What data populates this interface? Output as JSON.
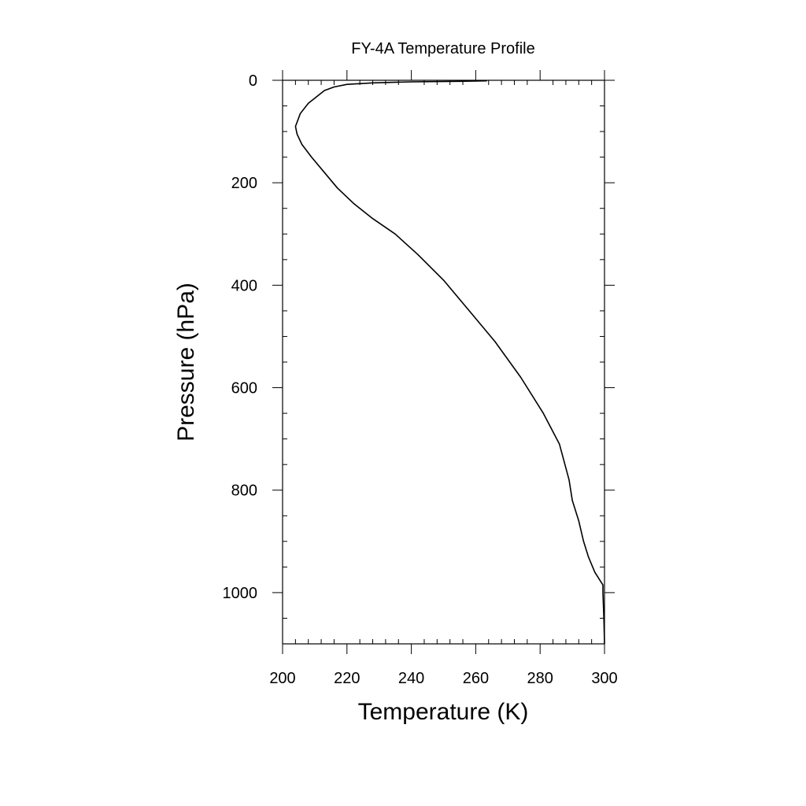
{
  "chart_data": {
    "type": "line",
    "title": "FY-4A Temperature Profile",
    "xlabel": "Temperature (K)",
    "ylabel": "Pressure (hPa)",
    "xlim": [
      200,
      300
    ],
    "ylim": [
      1100,
      0
    ],
    "y_inverted": true,
    "grid": false,
    "legend": "none",
    "x_ticks": [
      "200",
      "220",
      "240",
      "260",
      "280",
      "300"
    ],
    "y_ticks": [
      "0",
      "200",
      "400",
      "600",
      "800",
      "1000"
    ],
    "x_tick_values": [
      200,
      220,
      240,
      260,
      280,
      300
    ],
    "y_tick_values": [
      0,
      200,
      400,
      600,
      800,
      1000
    ],
    "x_minor_step": 4,
    "y_minor_step": 50,
    "line_color": "#000000",
    "series": [
      {
        "x": [
          263.5,
          255,
          240,
          228,
          220,
          216,
          213,
          211,
          208,
          205.5,
          204,
          204.5,
          206,
          209,
          213,
          217,
          222,
          228,
          235,
          242,
          250,
          258,
          266,
          274,
          281,
          286,
          289,
          290,
          292,
          293.5,
          295,
          297,
          299,
          299.5,
          299.5,
          299.8,
          300
        ],
        "y": [
          1,
          2,
          3,
          5,
          8,
          13,
          20,
          30,
          45,
          65,
          90,
          105,
          125,
          150,
          180,
          210,
          240,
          270,
          300,
          340,
          390,
          450,
          510,
          580,
          650,
          710,
          780,
          820,
          860,
          900,
          930,
          960,
          980,
          985,
          1000,
          1050,
          1100
        ]
      }
    ]
  }
}
